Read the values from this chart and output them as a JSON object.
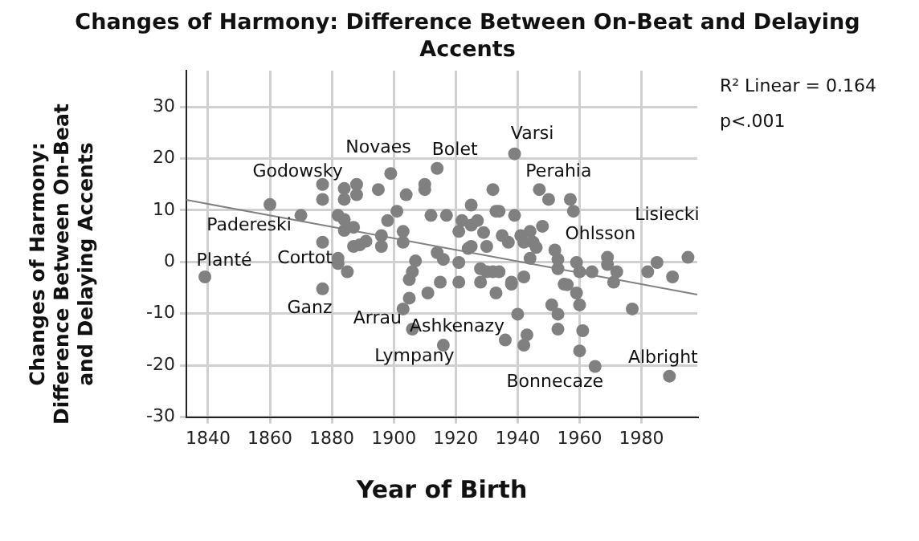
{
  "chart_data": {
    "type": "scatter",
    "title": "Changes of Harmony: Difference Between On-Beat and Delaying Accents",
    "xlabel": "Year of Birth",
    "ylabel": "Changes of Harmony: Difference Between On-Beat and Delaying Accents",
    "xlim": [
      1833,
      1998
    ],
    "xticks": [
      1840,
      1860,
      1880,
      1900,
      1920,
      1940,
      1960,
      1980
    ],
    "ylim": [
      -30,
      37
    ],
    "yticks": [
      -30,
      -20,
      -10,
      0,
      10,
      20,
      30
    ],
    "grid": true,
    "legend": false,
    "series": [
      {
        "marker": "circle",
        "color": "#808080",
        "x": [
          1839,
          1860,
          1870,
          1895,
          1899,
          1914,
          1877,
          1877,
          1884,
          1884,
          1888,
          1888,
          1904,
          1910,
          1910,
          1932,
          1925,
          1912,
          1917,
          1933,
          1882,
          1884,
          1901,
          1898,
          1922,
          1925,
          1921,
          1929,
          1884,
          1887,
          1903,
          1896,
          1891,
          1887,
          1889,
          1896,
          1903,
          1877,
          1882,
          1885,
          1907,
          1914,
          1916,
          1921,
          1925,
          1930,
          1930,
          1934,
          1877,
          1906,
          1905,
          1939,
          1947,
          1950,
          1957,
          1958,
          1934,
          1939,
          1927,
          1935,
          1937,
          1941,
          1942,
          1944,
          1945,
          1946,
          1948,
          1944,
          1952,
          1953,
          1959,
          1969,
          1969,
          1985,
          1982,
          1990,
          1995,
          1928,
          1932,
          1938,
          1942,
          1953,
          1955,
          1960,
          1964,
          1972,
          1924,
          1940,
          1951,
          1953,
          1953,
          1959,
          1960,
          1961,
          1960,
          1965,
          1989,
          1977,
          1971,
          1936,
          1942,
          1943,
          1933,
          1938,
          1928,
          1956,
          1905,
          1903,
          1906,
          1916,
          1911,
          1915,
          1921,
          1882
        ],
        "values": [
          -2.9,
          11.1,
          9.0,
          14.0,
          17.1,
          18.1,
          15.0,
          12.1,
          14.2,
          12.1,
          15.0,
          13.0,
          13.0,
          15.0,
          14.0,
          14.0,
          11.0,
          9.0,
          9.0,
          9.8,
          9.0,
          8.2,
          9.8,
          8.0,
          8.0,
          7.1,
          5.9,
          5.7,
          6.1,
          6.7,
          5.9,
          5.1,
          4.0,
          3.0,
          3.3,
          3.0,
          3.8,
          3.8,
          0.7,
          -1.9,
          0.2,
          1.8,
          0.5,
          -0.1,
          3.0,
          3.0,
          -1.9,
          -1.9,
          -5.2,
          -1.9,
          -3.4,
          20.9,
          14.0,
          12.1,
          12.1,
          9.8,
          9.8,
          9.0,
          8.0,
          5.1,
          3.8,
          5.1,
          3.8,
          5.9,
          3.8,
          2.8,
          6.9,
          0.7,
          2.3,
          0.5,
          -0.1,
          0.9,
          -0.5,
          -0.1,
          -1.9,
          -2.9,
          0.9,
          -1.3,
          -1.9,
          -4.3,
          -2.9,
          -1.3,
          -4.3,
          -1.9,
          -1.9,
          -1.9,
          2.6,
          -10.1,
          -8.3,
          -10.1,
          -13.0,
          -6.0,
          -8.3,
          -13.3,
          -17.2,
          -20.2,
          -22.1,
          -9.1,
          -3.9,
          -15.1,
          -16.1,
          -14.1,
          -6.0,
          -3.9,
          -3.9,
          -4.4,
          -7.0,
          -9.1,
          -13.0,
          -16.1,
          -6.0,
          -3.9,
          -3.9,
          -0.3
        ]
      },
      {
        "type": "line",
        "color": "#808080",
        "x": [
          1833,
          1998
        ],
        "values": [
          12.0,
          -6.3
        ]
      }
    ],
    "annotations": [
      {
        "text": "Planté",
        "x": 1839,
        "y": -2.9
      },
      {
        "text": "Padereski",
        "x": 1860,
        "y": 11.1
      },
      {
        "text": "Godowsky",
        "x": 1870,
        "y": 9.0
      },
      {
        "text": "Cortot",
        "x": 1877,
        "y": 3.8
      },
      {
        "text": "Ganz",
        "x": 1877,
        "y": -5.2
      },
      {
        "text": "Novaes",
        "x": 1895,
        "y": 14.0
      },
      {
        "text": "Bolet",
        "x": 1914,
        "y": 18.1
      },
      {
        "text": "Varsi",
        "x": 1939,
        "y": 20.9
      },
      {
        "text": "Perahia",
        "x": 1947,
        "y": 14.0
      },
      {
        "text": "Ohlsson",
        "x": 1948,
        "y": 6.9
      },
      {
        "text": "Lisiecki",
        "x": 1995,
        "y": 0.9
      },
      {
        "text": "Arrau",
        "x": 1903,
        "y": -9.1
      },
      {
        "text": "Ashkenazy",
        "x": 1936,
        "y": -15.1
      },
      {
        "text": "Lympany",
        "x": 1916,
        "y": -16.1
      },
      {
        "text": "Bonnecaze",
        "x": 1965,
        "y": -20.2
      },
      {
        "text": "Albright",
        "x": 1989,
        "y": -22.1
      },
      "R² Linear = 0.164",
      "p<.001"
    ]
  }
}
